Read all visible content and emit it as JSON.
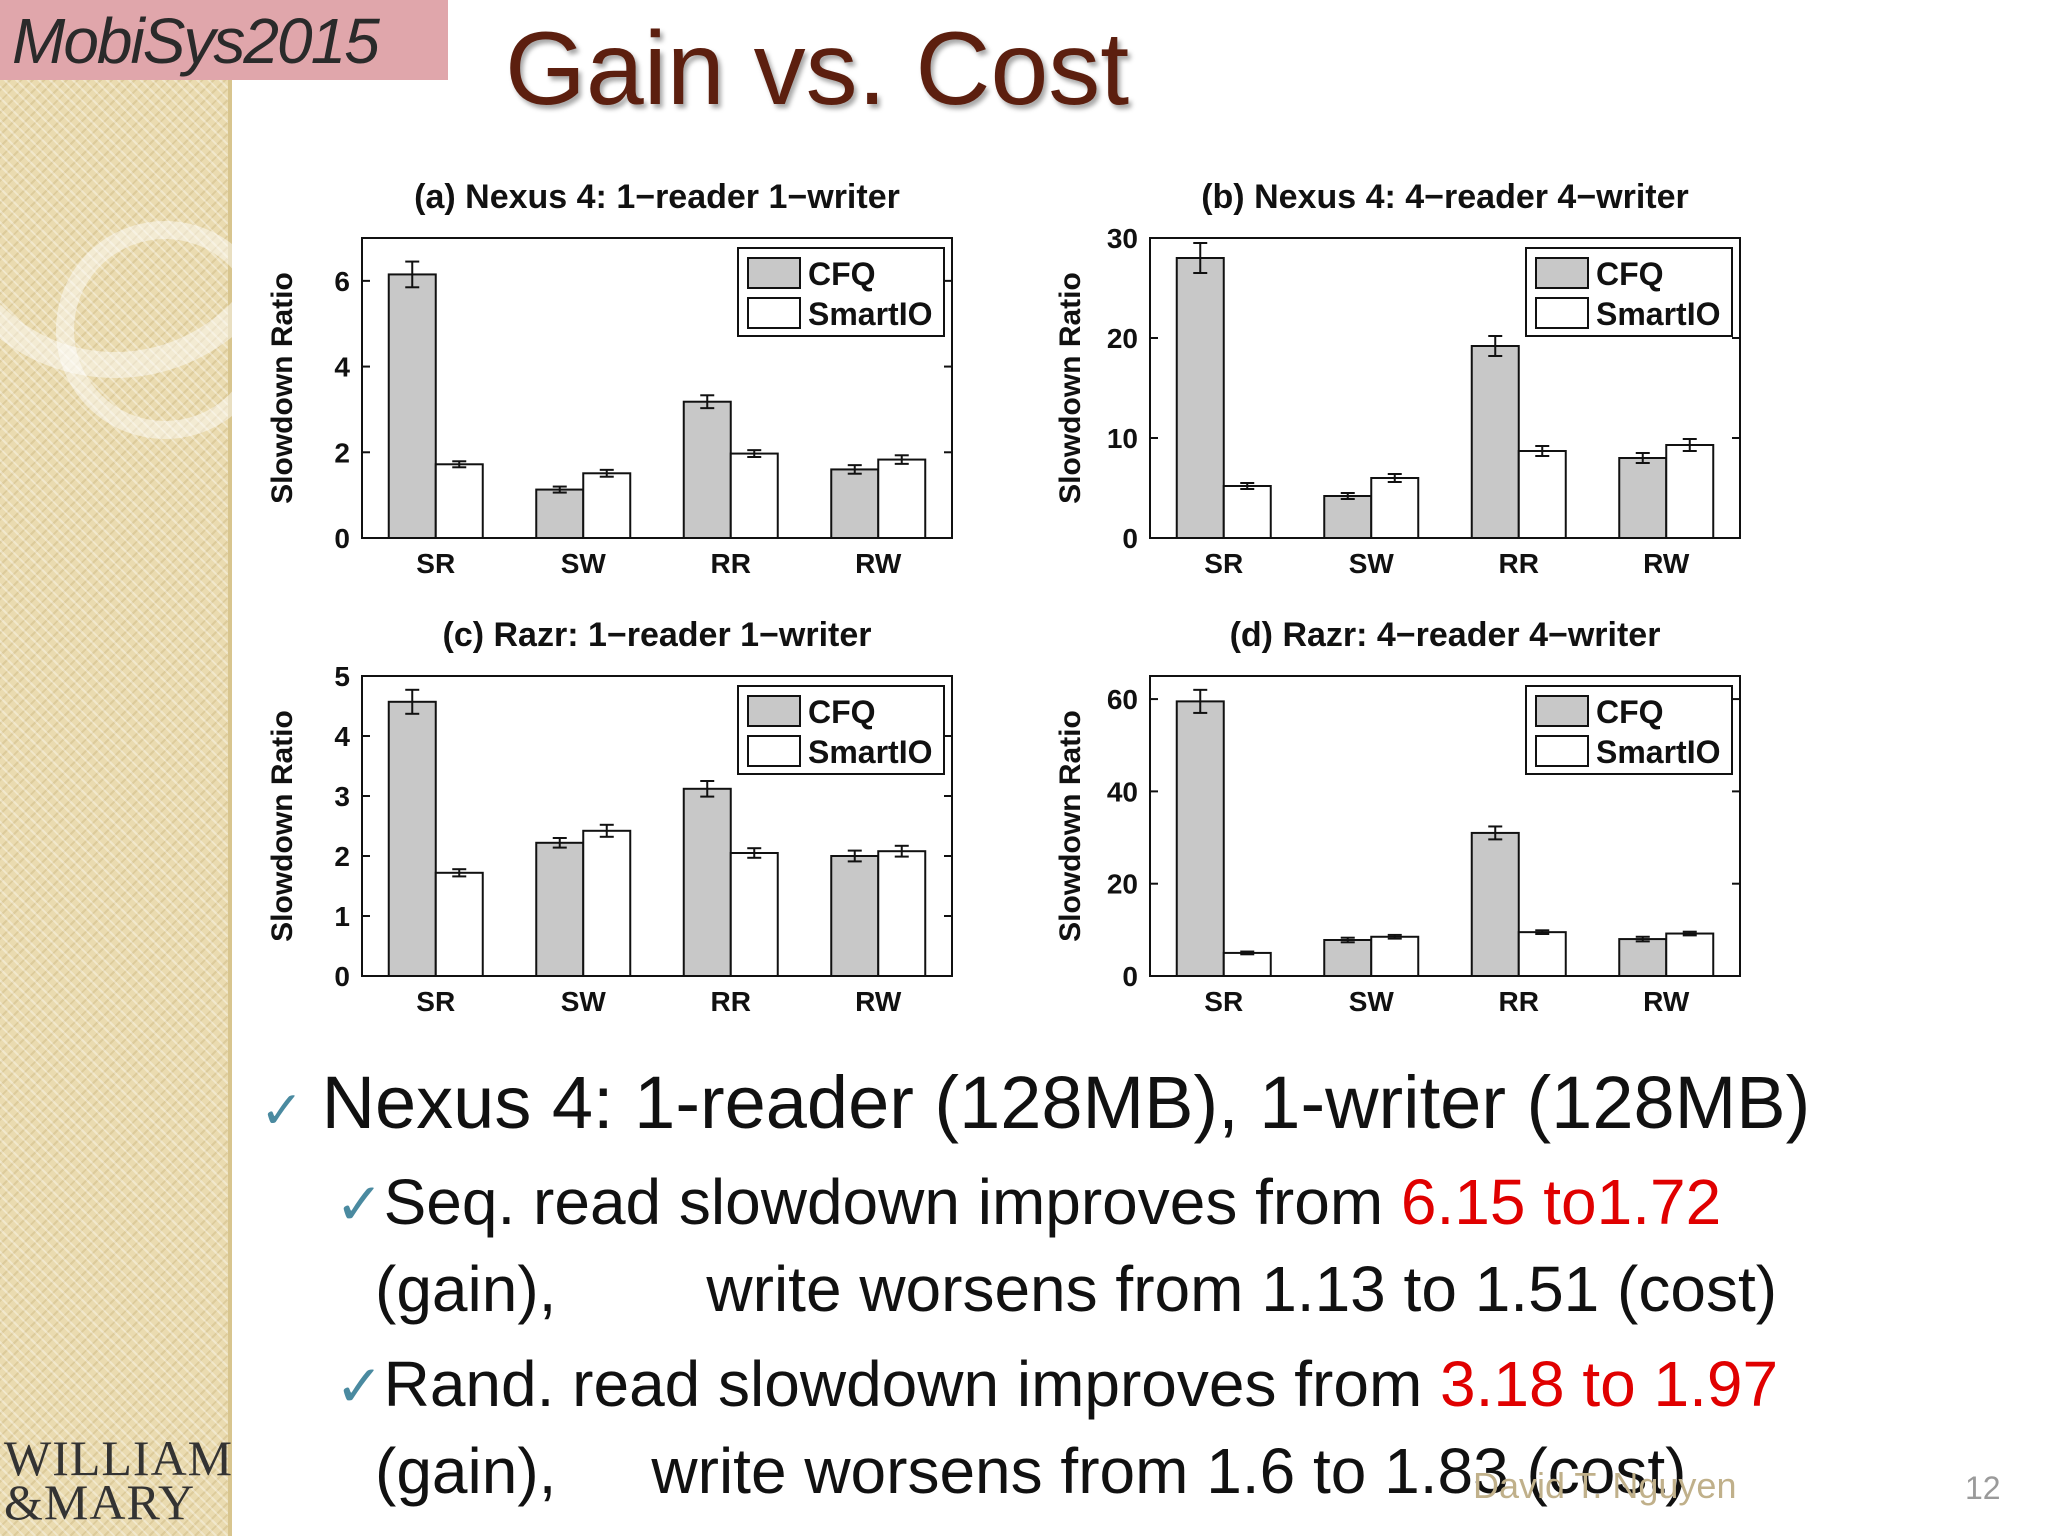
{
  "header": {
    "conference_logo": "MobiSys2015",
    "title": "Gain vs. Cost"
  },
  "chart_data": [
    {
      "type": "bar",
      "title": "(a) Nexus 4: 1−reader 1−writer",
      "ylabel": "Slowdown Ratio",
      "categories": [
        "SR",
        "SW",
        "RR",
        "RW"
      ],
      "yticks": [
        0,
        2,
        4,
        6
      ],
      "ylim": [
        0,
        7
      ],
      "series": [
        {
          "name": "CFQ",
          "values": [
            6.15,
            1.13,
            3.18,
            1.6
          ],
          "errors": [
            0.3,
            0.07,
            0.15,
            0.1
          ],
          "color": "#c8c8c8"
        },
        {
          "name": "SmartIO",
          "values": [
            1.72,
            1.51,
            1.97,
            1.83
          ],
          "errors": [
            0.07,
            0.08,
            0.08,
            0.1
          ],
          "color": "#ffffff"
        }
      ],
      "legend": "top-right"
    },
    {
      "type": "bar",
      "title": "(b) Nexus 4: 4−reader 4−writer",
      "ylabel": "Slowdown Ratio",
      "categories": [
        "SR",
        "SW",
        "RR",
        "RW"
      ],
      "yticks": [
        0,
        10,
        20,
        30
      ],
      "ylim": [
        0,
        30
      ],
      "series": [
        {
          "name": "CFQ",
          "values": [
            28,
            4.2,
            19.2,
            8
          ],
          "errors": [
            1.5,
            0.3,
            1,
            0.5
          ],
          "color": "#c8c8c8"
        },
        {
          "name": "SmartIO",
          "values": [
            5.2,
            6,
            8.7,
            9.3
          ],
          "errors": [
            0.3,
            0.4,
            0.5,
            0.6
          ],
          "color": "#ffffff"
        }
      ],
      "legend": "top-right"
    },
    {
      "type": "bar",
      "title": "(c) Razr: 1−reader 1−writer",
      "ylabel": "Slowdown Ratio",
      "categories": [
        "SR",
        "SW",
        "RR",
        "RW"
      ],
      "yticks": [
        0,
        1,
        2,
        3,
        4,
        5
      ],
      "ylim": [
        0,
        5
      ],
      "series": [
        {
          "name": "CFQ",
          "values": [
            4.57,
            2.22,
            3.12,
            2.0
          ],
          "errors": [
            0.2,
            0.08,
            0.13,
            0.09
          ],
          "color": "#c8c8c8"
        },
        {
          "name": "SmartIO",
          "values": [
            1.72,
            2.42,
            2.05,
            2.08
          ],
          "errors": [
            0.06,
            0.1,
            0.08,
            0.09
          ],
          "color": "#ffffff"
        }
      ],
      "legend": "top-right"
    },
    {
      "type": "bar",
      "title": "(d) Razr: 4−reader 4−writer",
      "ylabel": "Slowdown Ratio",
      "categories": [
        "SR",
        "SW",
        "RR",
        "RW"
      ],
      "yticks": [
        0,
        20,
        40,
        60
      ],
      "ylim": [
        0,
        65
      ],
      "series": [
        {
          "name": "CFQ",
          "values": [
            59.5,
            7.8,
            31,
            8
          ],
          "errors": [
            2.5,
            0.5,
            1.4,
            0.5
          ],
          "color": "#c8c8c8"
        },
        {
          "name": "SmartIO",
          "values": [
            5,
            8.5,
            9.5,
            9.2
          ],
          "errors": [
            0.3,
            0.4,
            0.4,
            0.4
          ],
          "color": "#ffffff"
        }
      ],
      "legend": "top-right"
    }
  ],
  "bullets": {
    "main": "Nexus 4: 1-reader (128MB), 1-writer (128MB)",
    "items": [
      {
        "prefix": "Seq. read slowdown improves from ",
        "highlight": "6.15 to1.72",
        "line2_start": "(gain),",
        "line2_end": "write worsens from 1.13 to 1.51 (cost)"
      },
      {
        "prefix": "Rand. read slowdown improves from ",
        "highlight": "3.18 to 1.97",
        "line2_start": "(gain),",
        "line2_end": "write worsens from 1.6 to 1.83 (cost)"
      }
    ]
  },
  "footer": {
    "author": "David T. Nguyen",
    "page": "12",
    "university_line1": "WILLIAM",
    "university_line2": "&MARY"
  }
}
